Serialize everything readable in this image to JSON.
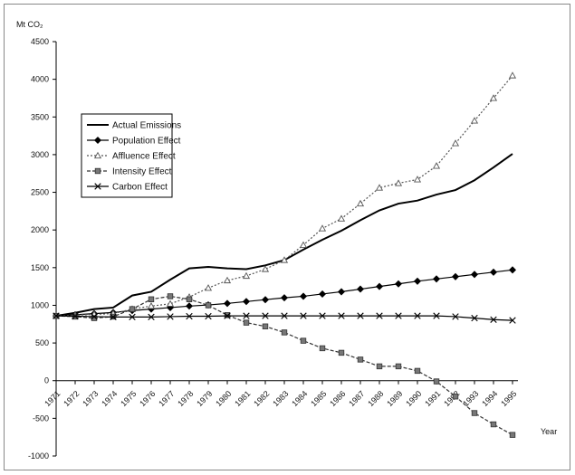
{
  "chart_data": {
    "type": "line",
    "title": "",
    "ylabel": "Mt CO₂",
    "xlabel": "Year",
    "ylim": [
      -1000,
      4500
    ],
    "yticks": [
      -1000,
      -500,
      0,
      500,
      1000,
      1500,
      2000,
      2500,
      3000,
      3500,
      4000,
      4500
    ],
    "categories": [
      "1971",
      "1972",
      "1973",
      "1974",
      "1975",
      "1976",
      "1977",
      "1978",
      "1979",
      "1980",
      "1981",
      "1982",
      "1983",
      "1984",
      "1985",
      "1986",
      "1987",
      "1988",
      "1989",
      "1990",
      "1991",
      "1992",
      "1993",
      "1994",
      "1995"
    ],
    "legend_position": "left",
    "grid": false,
    "series": [
      {
        "name": "Actual Emissions",
        "color": "#000000",
        "style": "solid-thick",
        "marker": "none",
        "values": [
          860,
          900,
          950,
          970,
          1130,
          1180,
          1340,
          1490,
          1510,
          1490,
          1480,
          1530,
          1600,
          1740,
          1870,
          1990,
          2130,
          2260,
          2350,
          2390,
          2470,
          2530,
          2660,
          2830,
          3010
        ]
      },
      {
        "name": "Population Effect",
        "color": "#000000",
        "style": "solid",
        "marker": "diamond",
        "values": [
          860,
          875,
          890,
          905,
          930,
          950,
          970,
          990,
          1005,
          1025,
          1050,
          1075,
          1100,
          1120,
          1150,
          1180,
          1215,
          1250,
          1285,
          1320,
          1350,
          1380,
          1410,
          1440,
          1470
        ]
      },
      {
        "name": "Affluence Effect",
        "color": "#555555",
        "style": "dotted",
        "marker": "triangle",
        "values": [
          860,
          870,
          880,
          890,
          950,
          990,
          1020,
          1110,
          1230,
          1330,
          1390,
          1480,
          1600,
          1800,
          2020,
          2150,
          2350,
          2560,
          2620,
          2670,
          2850,
          3150,
          3450,
          3750,
          4050
        ]
      },
      {
        "name": "Intensity Effect",
        "color": "#333333",
        "style": "dashed",
        "marker": "square",
        "values": [
          860,
          850,
          830,
          850,
          950,
          1080,
          1120,
          1080,
          1000,
          870,
          770,
          720,
          640,
          530,
          430,
          370,
          280,
          190,
          190,
          130,
          -10,
          -210,
          -430,
          -580,
          -720
        ]
      },
      {
        "name": "Carbon Effect",
        "color": "#000000",
        "style": "solid",
        "marker": "x",
        "values": [
          860,
          855,
          850,
          845,
          845,
          845,
          850,
          855,
          855,
          860,
          860,
          860,
          860,
          860,
          860,
          860,
          860,
          860,
          860,
          860,
          860,
          850,
          830,
          810,
          800
        ]
      }
    ]
  }
}
